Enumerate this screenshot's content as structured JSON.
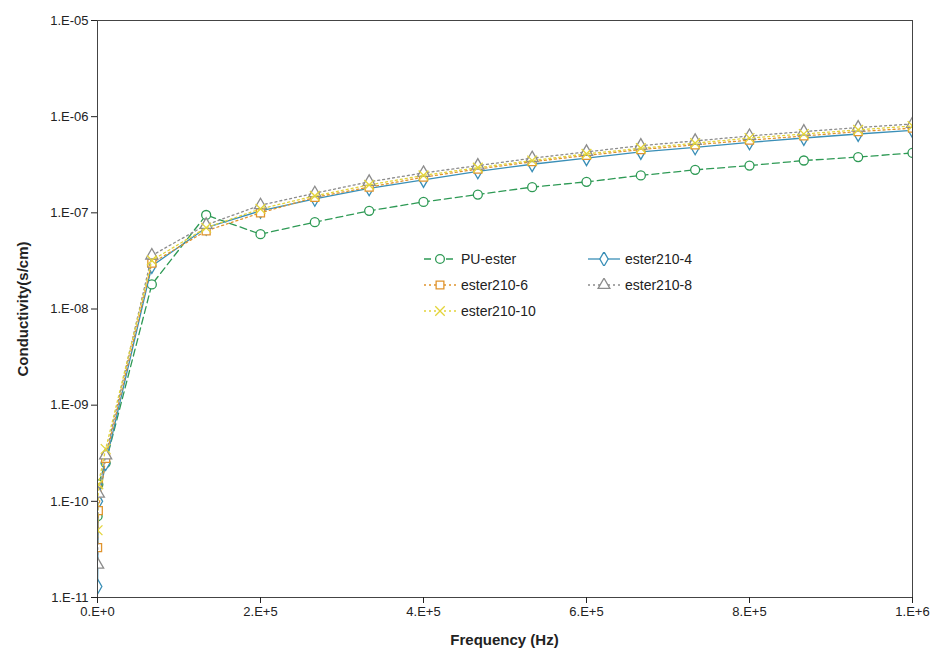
{
  "chart_data": {
    "type": "line",
    "x_label": "Frequency (Hz)",
    "y_label": "Conductivity(s/cm)",
    "log": "y",
    "grid": false,
    "legend": "right",
    "xlim": [
      0,
      1000000
    ],
    "xticks": [
      {
        "value": 0,
        "label": "0.E+0"
      },
      {
        "value": 200000,
        "label": "2.E+5"
      },
      {
        "value": 400000,
        "label": "4.E+5"
      },
      {
        "value": 600000,
        "label": "6.E+5"
      },
      {
        "value": 800000,
        "label": "8.E+5"
      },
      {
        "value": 1000000,
        "label": "1.E+6"
      }
    ],
    "ylim": [
      1e-11,
      1e-05
    ],
    "yticks": [
      {
        "value": 1e-11,
        "label": "1.E-11"
      },
      {
        "value": 1e-10,
        "label": "1.E-10"
      },
      {
        "value": 1e-09,
        "label": "1.E-09"
      },
      {
        "value": 1e-08,
        "label": "1.E-08"
      },
      {
        "value": 1e-07,
        "label": "1.E-07"
      },
      {
        "value": 1e-06,
        "label": "1.E-06"
      },
      {
        "value": 1e-05,
        "label": "1.E-05"
      }
    ],
    "x": [
      100,
      1000,
      10000,
      66667,
      133333,
      200000,
      266667,
      333333,
      400000,
      466667,
      533333,
      600000,
      666667,
      733333,
      800000,
      866667,
      933333,
      1000000
    ],
    "series": [
      {
        "name": "PU-ester",
        "color": "#2e9a55",
        "marker": "circle",
        "line_style": "dashed",
        "values": [
          7e-11,
          1.5e-10,
          2.5e-10,
          1.8e-08,
          9.5e-08,
          6e-08,
          8e-08,
          1.05e-07,
          1.3e-07,
          1.55e-07,
          1.85e-07,
          2.1e-07,
          2.45e-07,
          2.8e-07,
          3.1e-07,
          3.5e-07,
          3.8e-07,
          4.2e-07
        ]
      },
      {
        "name": "ester210-4",
        "color": "#3a8fb7",
        "marker": "diamond",
        "line_style": "solid",
        "values": [
          1.3e-11,
          1e-10,
          2.5e-10,
          2.8e-08,
          7e-08,
          1.05e-07,
          1.4e-07,
          1.8e-07,
          2.2e-07,
          2.7e-07,
          3.2e-07,
          3.7e-07,
          4.3e-07,
          4.8e-07,
          5.4e-07,
          6e-07,
          6.6e-07,
          7.2e-07
        ]
      },
      {
        "name": "ester210-6",
        "color": "#e0942e",
        "marker": "square",
        "line_style": "dotted",
        "values": [
          3.3e-11,
          8e-11,
          2.8e-10,
          3e-08,
          6.5e-08,
          1e-07,
          1.45e-07,
          1.85e-07,
          2.35e-07,
          2.85e-07,
          3.4e-07,
          3.95e-07,
          4.55e-07,
          5.1e-07,
          5.7e-07,
          6.3e-07,
          7e-07,
          7.6e-07
        ]
      },
      {
        "name": "ester210-8",
        "color": "#8c8c8c",
        "marker": "triangle",
        "line_style": "dotted",
        "values": [
          2.2e-11,
          1.2e-10,
          3e-10,
          3.6e-08,
          7.5e-08,
          1.2e-07,
          1.6e-07,
          2.1e-07,
          2.6e-07,
          3.1e-07,
          3.7e-07,
          4.3e-07,
          5e-07,
          5.6e-07,
          6.3e-07,
          7e-07,
          7.7e-07,
          8.4e-07
        ]
      },
      {
        "name": "ester210-10",
        "color": "#e3d43a",
        "marker": "times",
        "line_style": "dotted",
        "values": [
          5e-11,
          1.5e-10,
          3.5e-10,
          3.2e-08,
          7e-08,
          1.1e-07,
          1.5e-07,
          1.95e-07,
          2.45e-07,
          2.95e-07,
          3.5e-07,
          4.1e-07,
          4.7e-07,
          5.3e-07,
          6e-07,
          6.6e-07,
          7.3e-07,
          8e-07
        ]
      }
    ]
  }
}
